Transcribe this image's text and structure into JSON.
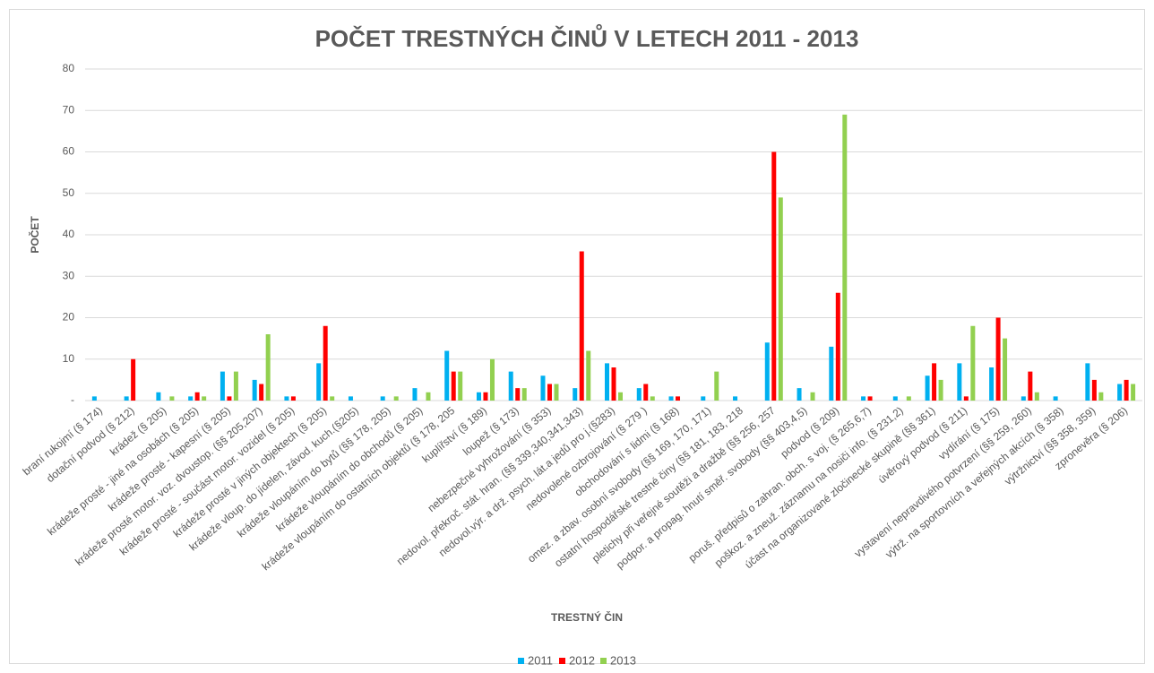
{
  "chart_data": {
    "type": "bar",
    "title": "POČET TRESTNÝCH ČINŮ V LETECH 2011 - 2013",
    "x_label": "TRESTNÝ ČIN",
    "y_label": "POČET",
    "categories": [
      "braní rukojmí (§ 174)",
      "dotační podvod (§ 212)",
      "krádež (§ 205)",
      "krádeže prosté - jiné na osobách (§ 205)",
      "krádeže prosté - kapesní (§ 205)",
      "krádeže prosté motor. voz. dvoustop. (§§ 205,207)",
      "krádeže prosté - součást motor. vozidel (§ 205)",
      "krádeže prosté v jiných objektech (§ 205)",
      "krádeže vloup. do jídelen, závod. kuch.(§205)",
      "krádeže vloupáním do bytů (§§ 178, 205)",
      "krádeže vloupáním do obchodů (§ 205)",
      "krádeže vloupáním do ostatních objektů (§ 178, 205",
      "kuplířství (§ 189)",
      "loupež (§ 173)",
      "nebezpečné vyhrožování (§ 353)",
      "nedovol. překroč. stát. hran. (§§ 339,340,341,343)",
      "nedovol.výr. a drž. psych. lát.a jedů pro j.(§283)",
      "nedovolené ozbrojování (§ 279 )",
      "obchodování s lidmi (§ 168)",
      "omez. a zbav. osobní svobody (§§ 169, 170, 171)",
      "ostatní hospodářské trestné činy (§§ 181, 183, 218",
      "pletichy při veřejné soutěži a dražbě (§§ 256, 257",
      "podpor. a propag. hnutí směř. svobody (§§ 403,4,5)",
      "podvod (§ 209)",
      "poruš. předpisů o zahran. obch. s voj. (§ 265,6,7)",
      "poškoz. a zneuž. záznamu na nosiči info. (§ 231,2)",
      "účast na organizované zločinecké skupině (§§ 361)",
      "úvěrový podvod (§ 211)",
      "vydírání (§ 175)",
      "vystavení nepravdivého potvrzení (§§ 259, 260)",
      "výtrž. na sportovních a veřejných akcích (§ 358)",
      "výtržnictví (§§ 358, 359)",
      "zpronevěra (§ 206)"
    ],
    "series": [
      {
        "name": "2011",
        "color": "#00b0f0",
        "values": [
          1,
          1,
          2,
          1,
          7,
          5,
          1,
          9,
          1,
          1,
          3,
          12,
          2,
          7,
          6,
          3,
          9,
          3,
          1,
          1,
          1,
          14,
          3,
          13,
          1,
          1,
          6,
          9,
          8,
          1,
          1,
          9,
          4
        ]
      },
      {
        "name": "2012",
        "color": "#ff0000",
        "values": [
          0,
          10,
          0,
          2,
          1,
          4,
          1,
          18,
          0,
          0,
          0,
          7,
          2,
          3,
          4,
          36,
          8,
          4,
          1,
          0,
          0,
          60,
          0,
          26,
          1,
          0,
          9,
          1,
          20,
          7,
          0,
          5,
          5
        ]
      },
      {
        "name": "2013",
        "color": "#92d050",
        "values": [
          0,
          0,
          1,
          1,
          7,
          16,
          0,
          1,
          0,
          1,
          2,
          7,
          10,
          3,
          4,
          12,
          2,
          1,
          0,
          7,
          0,
          49,
          2,
          69,
          0,
          1,
          5,
          18,
          15,
          2,
          0,
          2,
          4
        ]
      }
    ],
    "ylim": [
      0,
      80
    ],
    "yticks": [
      {
        "value": 0,
        "label": "-"
      },
      10,
      20,
      30,
      40,
      50,
      60,
      70,
      80
    ],
    "grid": true,
    "legend": "bottom"
  }
}
